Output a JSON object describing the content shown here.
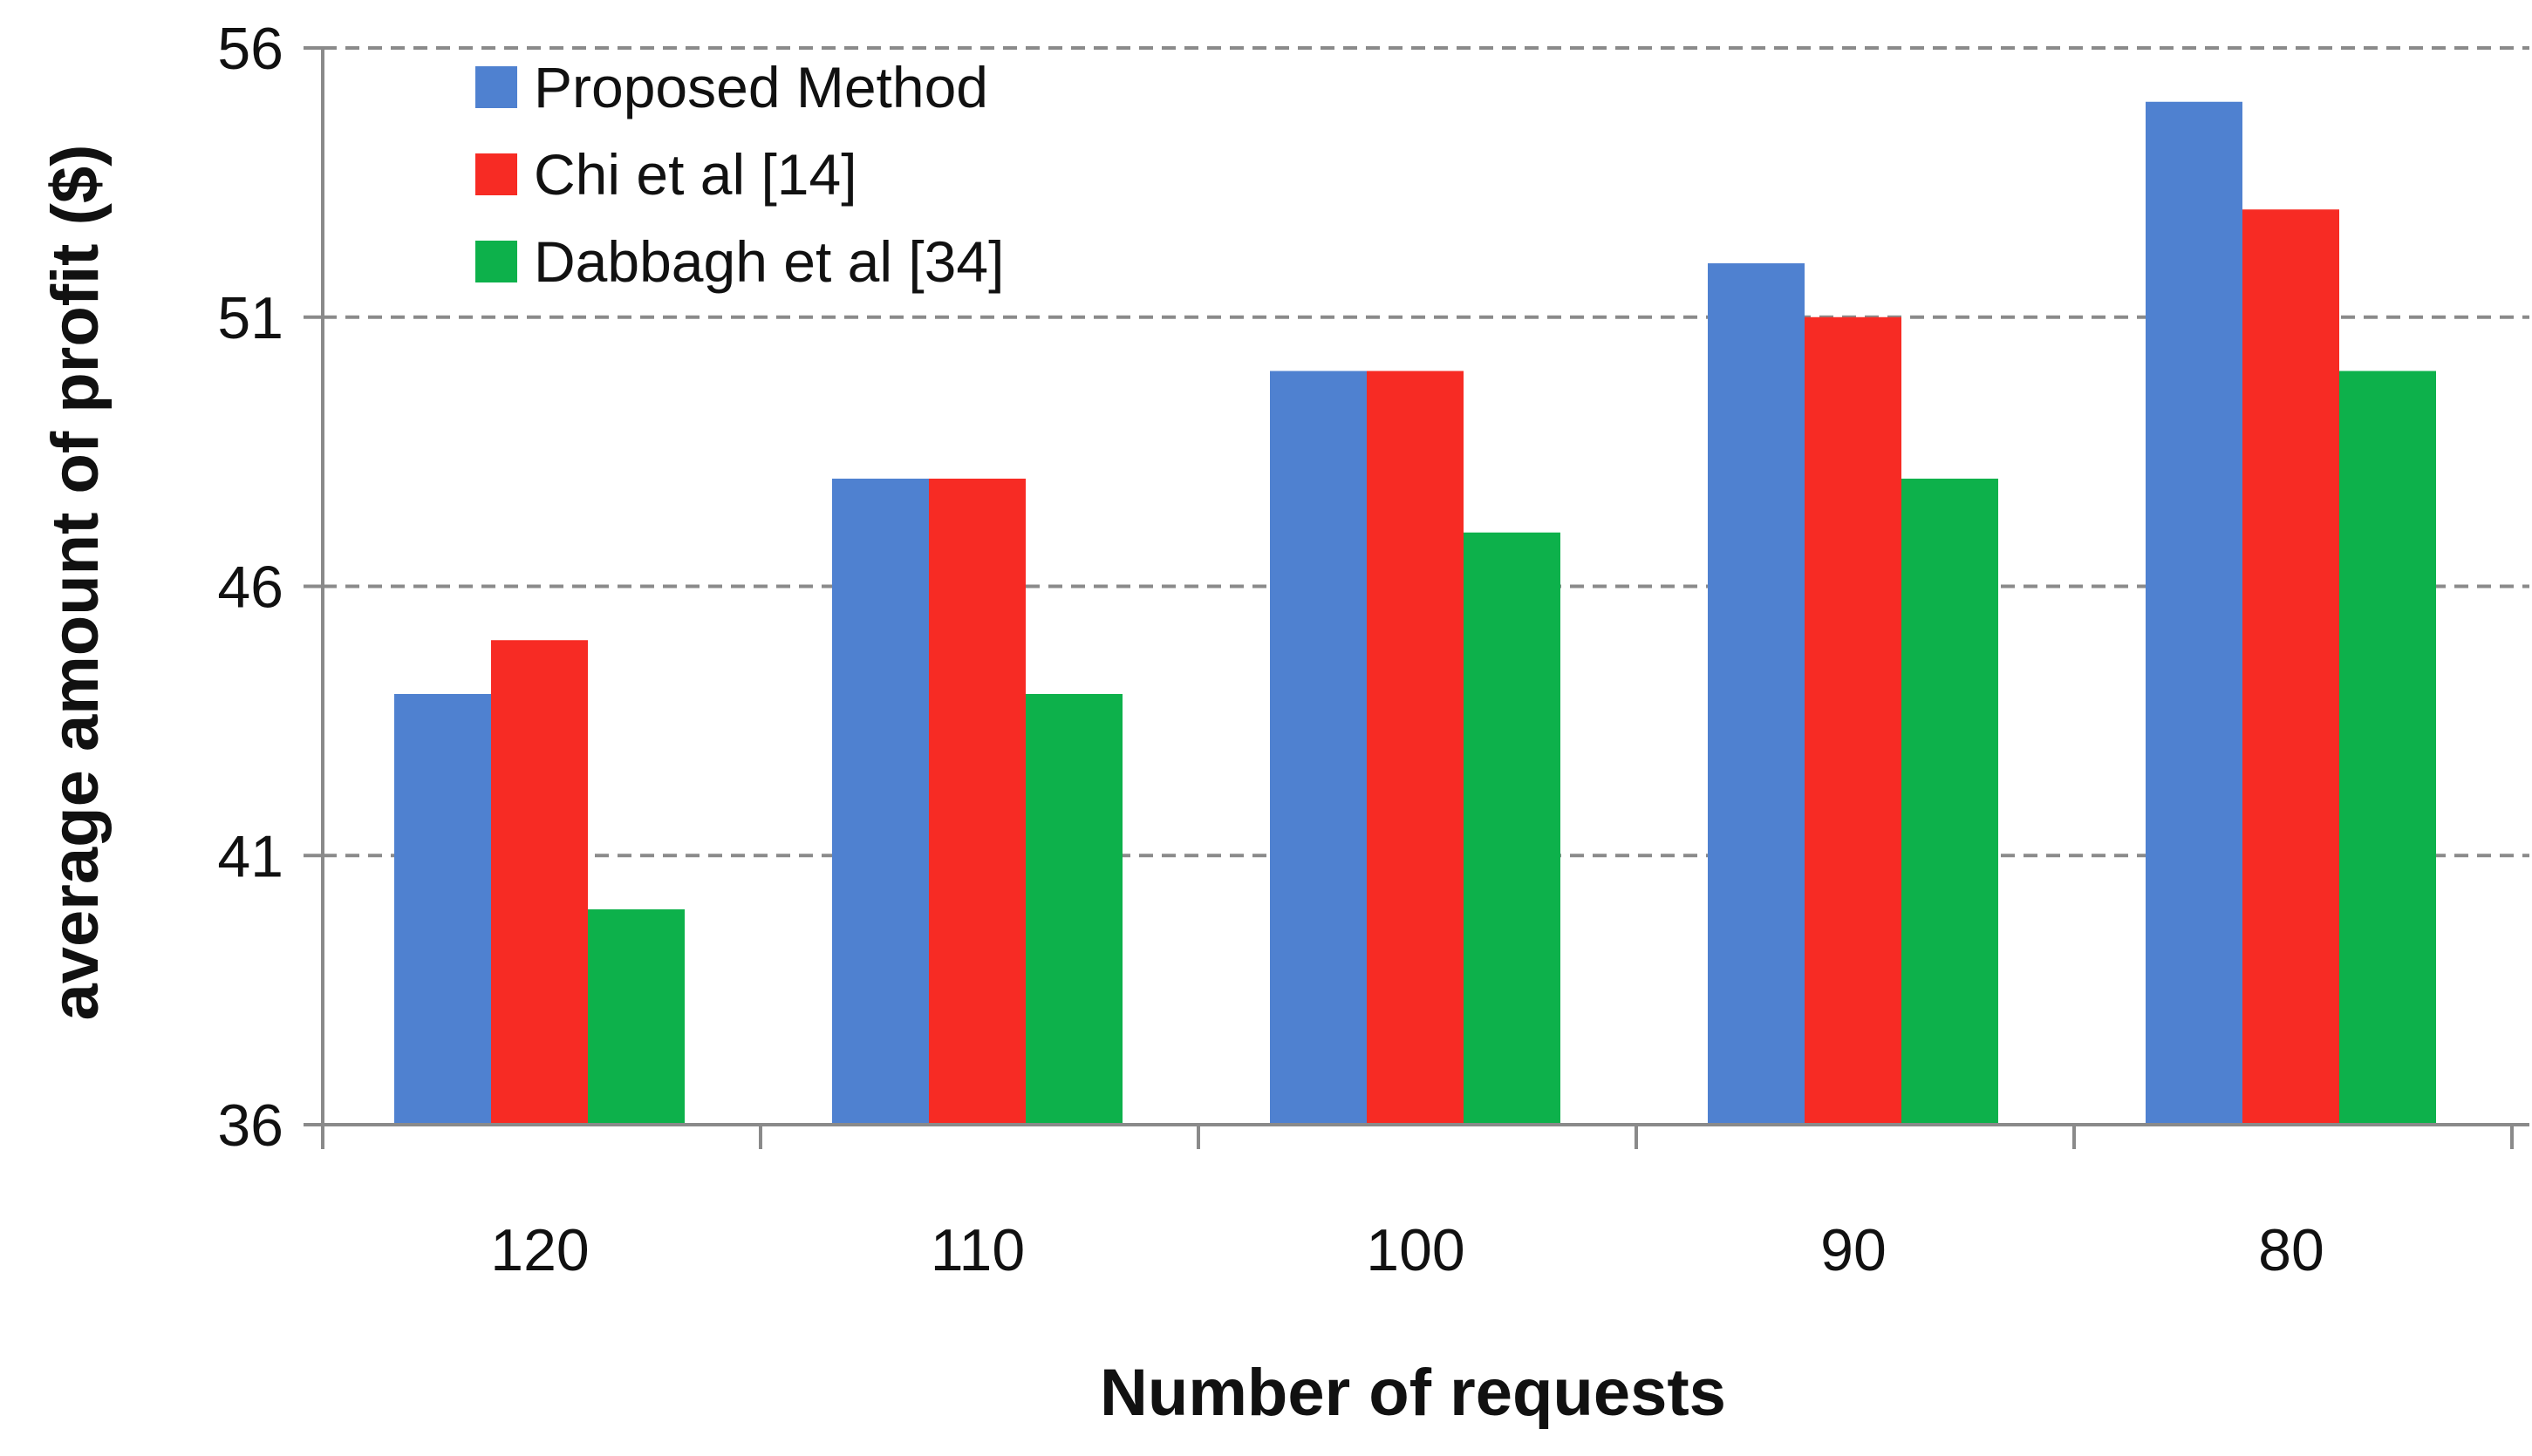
{
  "chart_data": {
    "type": "bar",
    "title": "",
    "xlabel": "Number of requests",
    "ylabel": "average amount of profit ($)",
    "categories": [
      "120",
      "110",
      "100",
      "90",
      "80"
    ],
    "ylim": [
      36,
      56
    ],
    "yticks": [
      "36",
      "41",
      "46",
      "51",
      "56"
    ],
    "grid": true,
    "legend_position": "top-left",
    "series": [
      {
        "name": "Proposed Method",
        "color": "#4f81d0",
        "values": [
          44,
          48,
          50,
          52,
          55
        ]
      },
      {
        "name": "Chi et al [14]",
        "color": "#f72b24",
        "values": [
          45,
          48,
          50,
          51,
          53
        ]
      },
      {
        "name": "Dabbagh et al [34]",
        "color": "#0db14b",
        "values": [
          40,
          44,
          47,
          48,
          50
        ]
      }
    ]
  }
}
